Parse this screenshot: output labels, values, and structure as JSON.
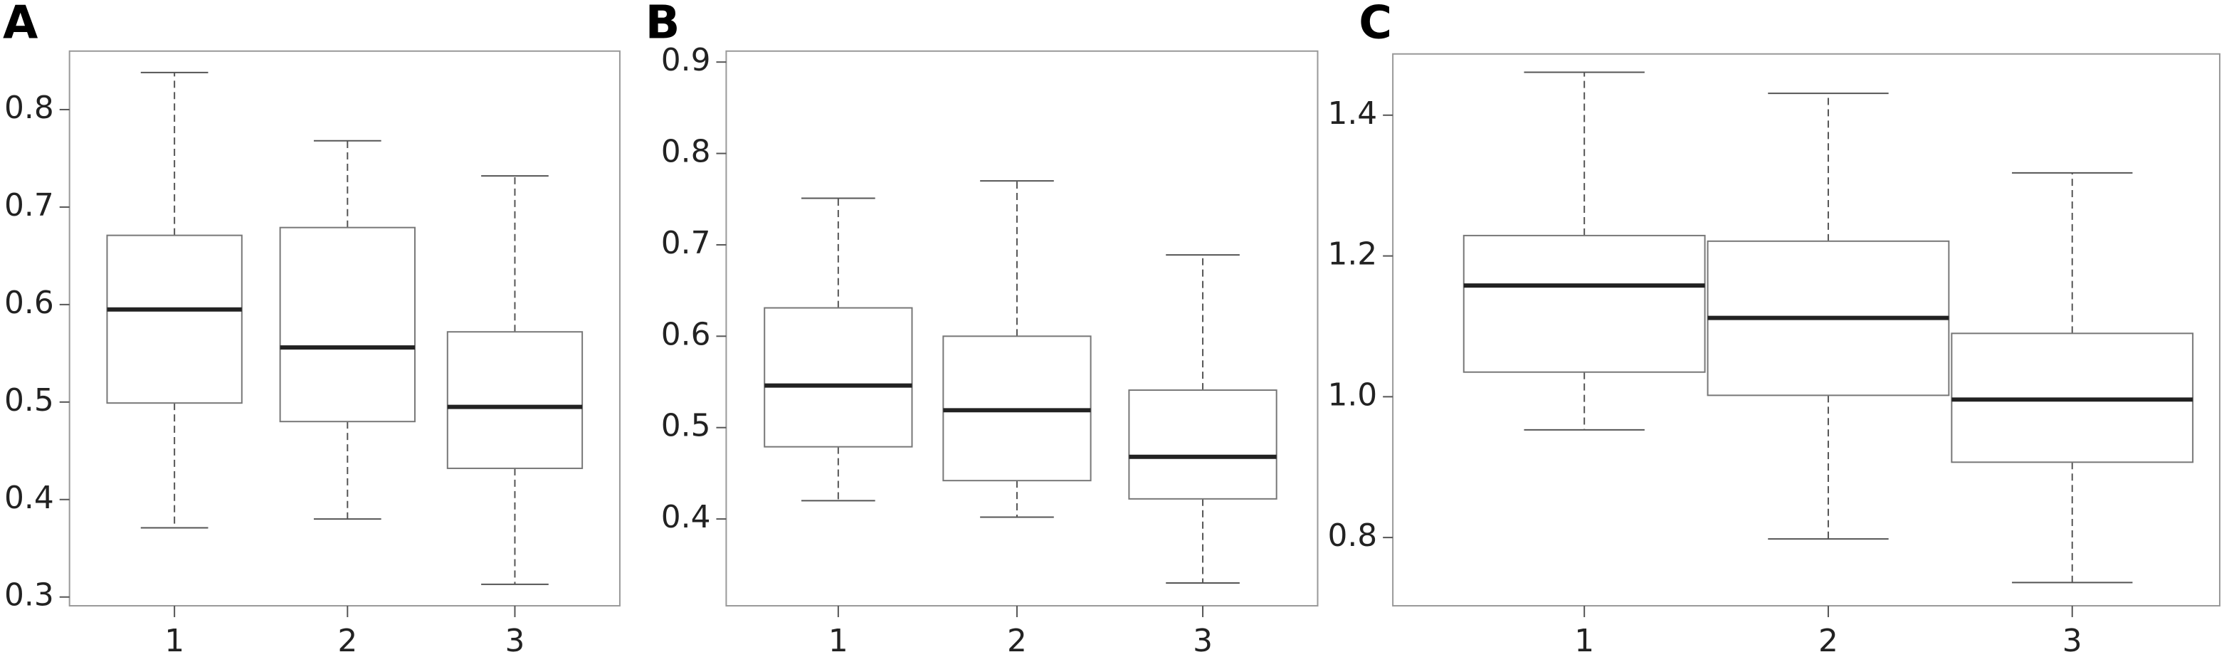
{
  "chart_data": [
    {
      "type": "box",
      "title": "A",
      "categories": [
        "1",
        "2",
        "3"
      ],
      "boxes": [
        {
          "min": 0.371,
          "q1": 0.499,
          "median": 0.595,
          "q3": 0.671,
          "max": 0.838
        },
        {
          "min": 0.38,
          "q1": 0.48,
          "median": 0.556,
          "q3": 0.679,
          "max": 0.768
        },
        {
          "min": 0.313,
          "q1": 0.432,
          "median": 0.495,
          "q3": 0.572,
          "max": 0.732
        }
      ],
      "ylim": [
        0.291,
        0.86
      ],
      "yticks": [
        0.3,
        0.4,
        0.5,
        0.6,
        0.7,
        0.8
      ]
    },
    {
      "type": "box",
      "title": "B",
      "categories": [
        "1",
        "2",
        "3"
      ],
      "boxes": [
        {
          "min": 0.42,
          "q1": 0.479,
          "median": 0.546,
          "q3": 0.631,
          "max": 0.751
        },
        {
          "min": 0.402,
          "q1": 0.442,
          "median": 0.519,
          "q3": 0.6,
          "max": 0.77
        },
        {
          "min": 0.33,
          "q1": 0.422,
          "median": 0.468,
          "q3": 0.541,
          "max": 0.689
        }
      ],
      "ylim": [
        0.305,
        0.912
      ],
      "yticks": [
        0.4,
        0.5,
        0.6,
        0.7,
        0.8,
        0.9
      ]
    },
    {
      "type": "box",
      "title": "C",
      "categories": [
        "1",
        "2",
        "3"
      ],
      "boxes": [
        {
          "min": 0.953,
          "q1": 1.035,
          "median": 1.158,
          "q3": 1.229,
          "max": 1.461
        },
        {
          "min": 0.798,
          "q1": 1.002,
          "median": 1.112,
          "q3": 1.221,
          "max": 1.431
        },
        {
          "min": 0.736,
          "q1": 0.907,
          "median": 0.996,
          "q3": 1.09,
          "max": 1.318
        }
      ],
      "ylim": [
        0.703,
        1.487
      ],
      "yticks": [
        0.8,
        {
          "value": 1,
          "label": "1.0"
        },
        1.2,
        1.4
      ]
    }
  ]
}
